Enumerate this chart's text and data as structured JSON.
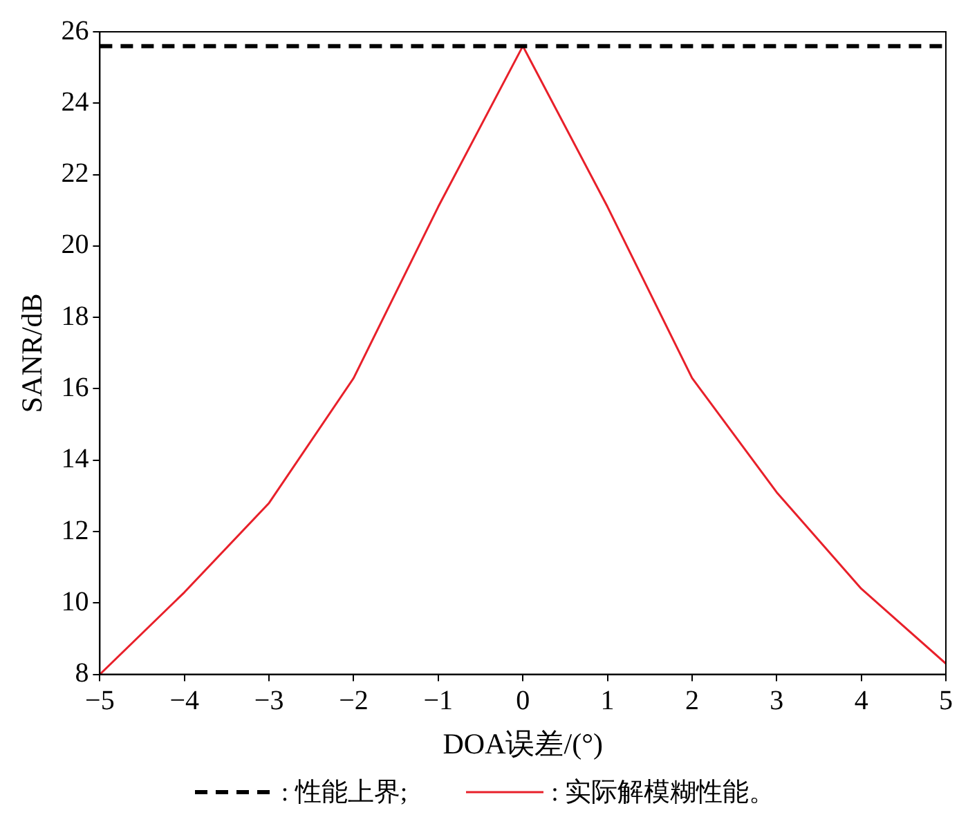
{
  "chart_data": {
    "type": "line",
    "xlabel": "DOA误差/(°)",
    "ylabel": "SANR/dB",
    "xlim": [
      -5,
      5
    ],
    "xticks": [
      {
        "value": -5,
        "label": "−5"
      },
      {
        "value": -4,
        "label": "−4"
      },
      {
        "value": -3,
        "label": "−3"
      },
      {
        "value": -2,
        "label": "−2"
      },
      {
        "value": -1,
        "label": "−1"
      },
      0,
      1,
      2,
      3,
      4,
      5
    ],
    "ylim": [
      8,
      26
    ],
    "yticks": [
      8,
      10,
      12,
      14,
      16,
      18,
      20,
      22,
      24,
      26
    ],
    "grid": false,
    "legend": "bottom",
    "marker": "none",
    "series": [
      {
        "name": ": 性能上界;",
        "color": "#000000",
        "line_style": "dashed",
        "x": [
          -5,
          5
        ],
        "values": [
          25.6,
          25.6
        ]
      },
      {
        "name": ": 实际解模糊性能。",
        "color": "#e8202a",
        "line_style": "solid",
        "x": [
          -5,
          -4,
          -3,
          -2,
          -1,
          0,
          1,
          2,
          3,
          4,
          5
        ],
        "values": [
          8.0,
          10.3,
          12.8,
          16.3,
          21.1,
          25.6,
          21.1,
          16.3,
          13.1,
          10.4,
          8.3
        ]
      }
    ]
  }
}
